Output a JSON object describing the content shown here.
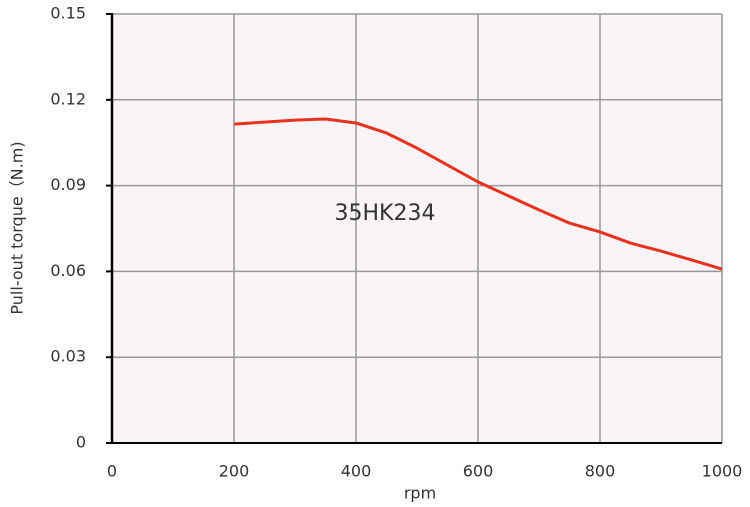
{
  "chart_data": {
    "type": "line",
    "x_label": "rpm",
    "y_label": "Pull-out torque（N.m)",
    "annotation": "35HK234",
    "x": [
      200,
      250,
      300,
      350,
      400,
      450,
      500,
      550,
      600,
      650,
      700,
      750,
      800,
      850,
      900,
      950,
      1000
    ],
    "series": [
      {
        "name": "35HK234",
        "color": "#e8321e",
        "values": [
          0.1115,
          0.1122,
          0.1129,
          0.1133,
          0.1119,
          0.1084,
          0.1031,
          0.0972,
          0.0913,
          0.0864,
          0.0815,
          0.0769,
          0.0738,
          0.0699,
          0.0671,
          0.064,
          0.0608
        ]
      }
    ],
    "xlim": [
      0,
      1000
    ],
    "xticks": [
      0,
      200,
      400,
      600,
      800,
      1000
    ],
    "ylim": [
      0,
      0.15
    ],
    "yticks": [
      0,
      0.03,
      0.06,
      0.09,
      0.12,
      0.15
    ],
    "grid": true
  }
}
